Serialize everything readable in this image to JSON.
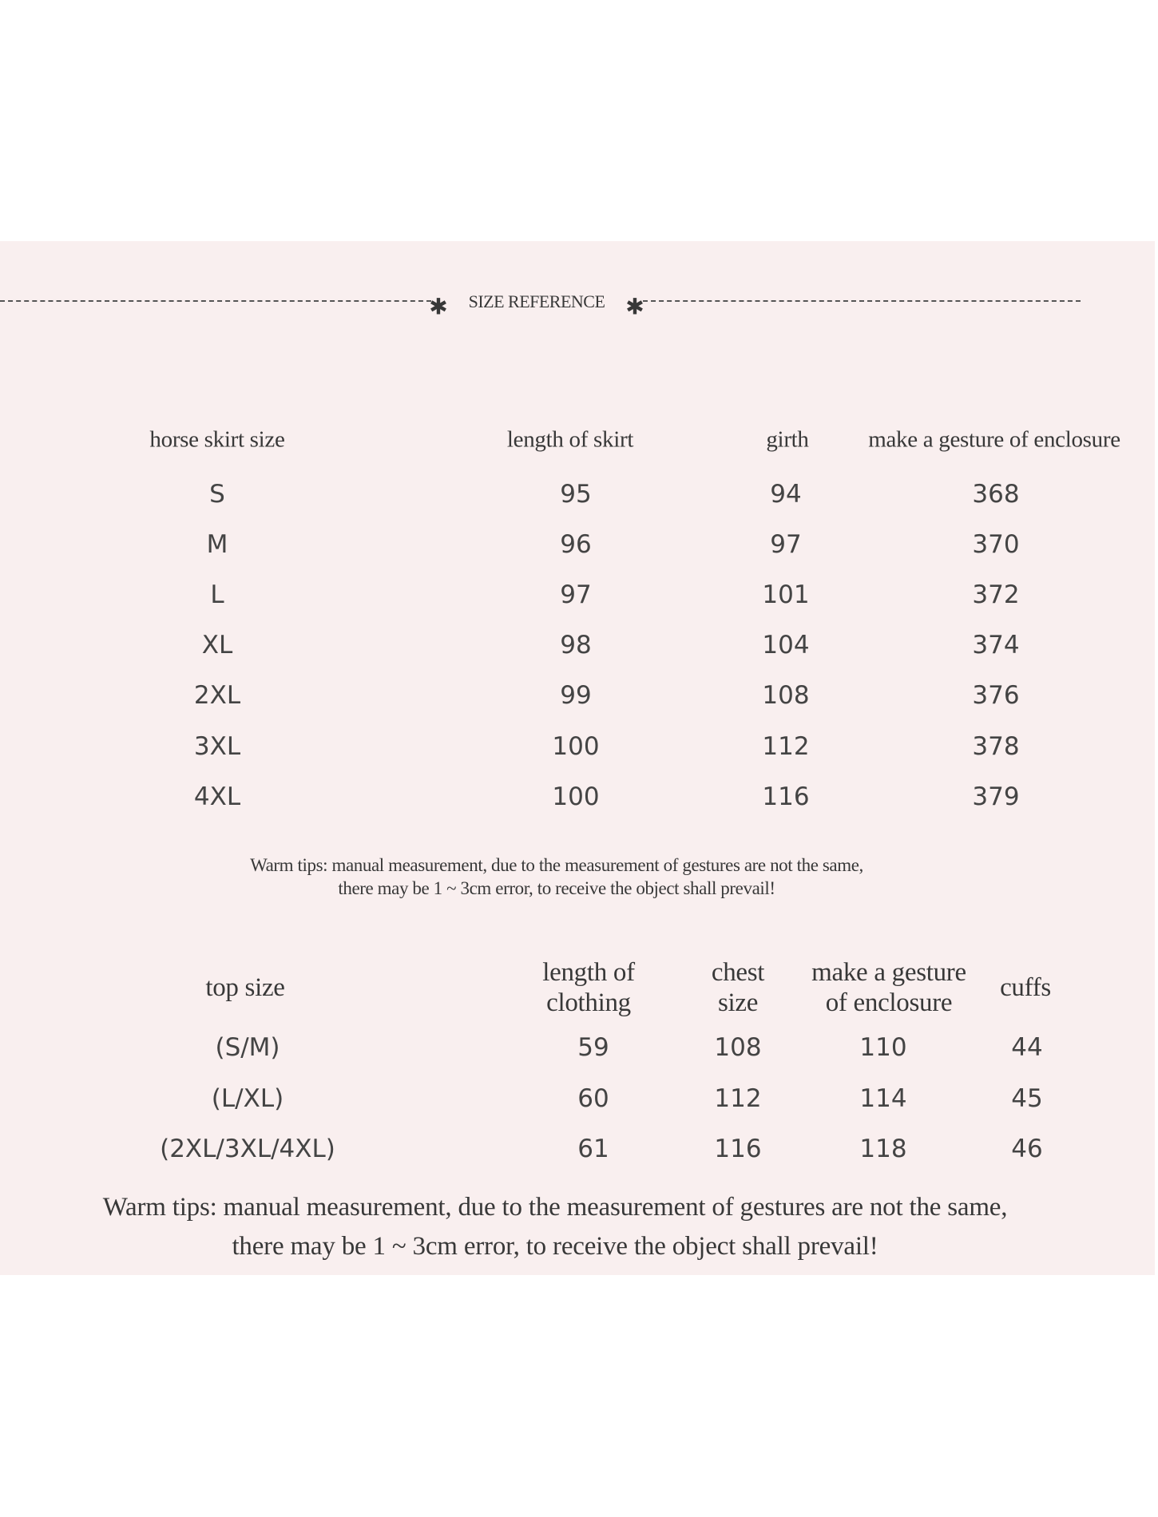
{
  "section_title": "SIZE REFERENCE",
  "skirt_table": {
    "headers": [
      "horse skirt size",
      "length of skirt",
      "girth",
      "make a gesture of enclosure"
    ],
    "rows": [
      [
        "S",
        "95",
        "94",
        "368"
      ],
      [
        "M",
        "96",
        "97",
        "370"
      ],
      [
        "L",
        "97",
        "101",
        "372"
      ],
      [
        "XL",
        "98",
        "104",
        "374"
      ],
      [
        "2XL",
        "99",
        "108",
        "376"
      ],
      [
        "3XL",
        "100",
        "112",
        "378"
      ],
      [
        "4XL",
        "100",
        "116",
        "379"
      ]
    ],
    "tip_line1": "Warm tips: manual measurement, due to the measurement of gestures are not the same,",
    "tip_line2": "there may be 1 ~ 3cm error, to receive the object shall prevail!"
  },
  "top_table": {
    "headers": [
      {
        "line1": "top size",
        "line2": ""
      },
      {
        "line1": "length of",
        "line2": "clothing"
      },
      {
        "line1": "chest",
        "line2": "size"
      },
      {
        "line1": "make a gesture",
        "line2": "of enclosure"
      },
      {
        "line1": "cuffs",
        "line2": ""
      }
    ],
    "rows": [
      [
        "(S/M)",
        "59",
        "108",
        "110",
        "44"
      ],
      [
        "(L/XL)",
        "60",
        "112",
        "114",
        "45"
      ],
      [
        "(2XL/3XL/4XL)",
        "61",
        "116",
        "118",
        "46"
      ]
    ],
    "tip_line1": "Warm tips: manual measurement, due to the measurement of gestures are not the same,",
    "tip_line2": "there may be 1 ~ 3cm error, to receive the object shall prevail!"
  },
  "colors": {
    "background": "#f9efef",
    "text": "#383838"
  }
}
